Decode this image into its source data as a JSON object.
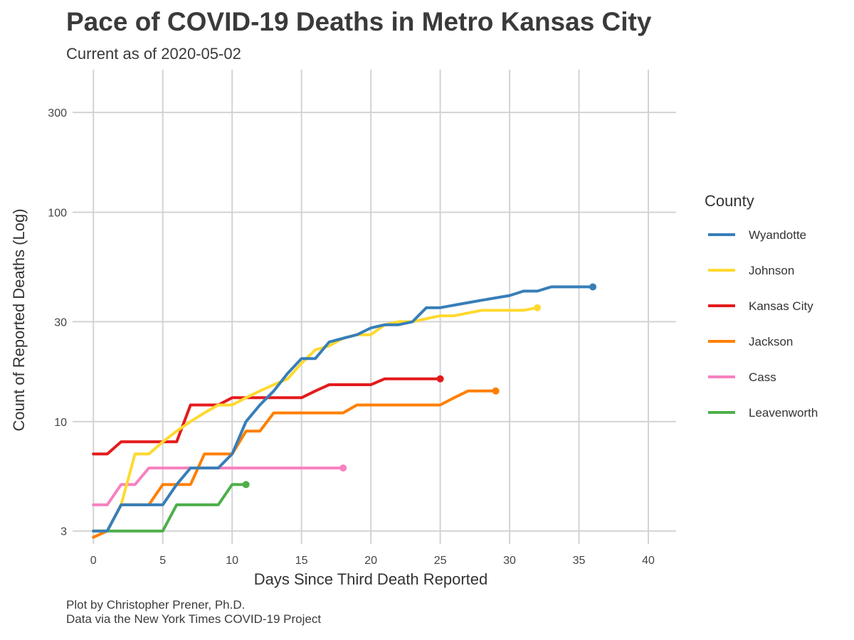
{
  "chart_data": {
    "type": "line",
    "title": "Pace of COVID-19 Deaths in Metro Kansas City",
    "subtitle": "Current as of 2020-05-02",
    "xlabel": "Days Since Third Death Reported",
    "ylabel": "Count of Reported Deaths (Log)",
    "xlim": [
      -1.5,
      42
    ],
    "ylim": [
      2.6,
      480
    ],
    "y_scale": "log",
    "x_ticks": [
      0,
      5,
      10,
      15,
      20,
      25,
      30,
      35,
      40
    ],
    "y_ticks": [
      3,
      10,
      30,
      100,
      300
    ],
    "grid": true,
    "legend": {
      "title": "County",
      "position": "right"
    },
    "caption": [
      "Plot by Christopher Prener, Ph.D.",
      "Data via the New York Times COVID-19 Project"
    ],
    "series": [
      {
        "name": "Wyandotte",
        "color": "#377EB8",
        "x": [
          0,
          1,
          2,
          3,
          4,
          5,
          6,
          7,
          8,
          9,
          10,
          11,
          12,
          13,
          14,
          15,
          16,
          17,
          18,
          19,
          20,
          21,
          22,
          23,
          24,
          25,
          26,
          27,
          28,
          29,
          30,
          31,
          32,
          33,
          34,
          35,
          36
        ],
        "y": [
          3,
          3,
          4,
          4,
          4,
          4,
          5,
          6,
          6,
          6,
          7,
          10,
          12,
          14,
          17,
          20,
          20,
          24,
          25,
          26,
          28,
          29,
          29,
          30,
          35,
          35,
          36,
          37,
          38,
          39,
          40,
          42,
          42,
          44,
          44,
          44,
          44
        ]
      },
      {
        "name": "Johnson",
        "color": "#FFD92F",
        "x": [
          0,
          1,
          2,
          3,
          4,
          5,
          6,
          7,
          8,
          9,
          10,
          11,
          12,
          13,
          14,
          15,
          16,
          17,
          18,
          19,
          20,
          21,
          22,
          23,
          24,
          25,
          26,
          27,
          28,
          29,
          30,
          31,
          32
        ],
        "y": [
          3,
          3,
          4,
          7,
          7,
          8,
          9,
          10,
          11,
          12,
          12,
          13,
          14,
          15,
          16,
          19,
          22,
          23,
          25,
          26,
          26,
          29,
          30,
          30,
          31,
          32,
          32,
          33,
          34,
          34,
          34,
          34,
          35
        ]
      },
      {
        "name": "Kansas City",
        "color": "#E41A1C",
        "x": [
          0,
          1,
          2,
          3,
          4,
          5,
          6,
          7,
          8,
          9,
          10,
          11,
          12,
          13,
          14,
          15,
          16,
          17,
          18,
          19,
          20,
          21,
          22,
          23,
          24,
          25
        ],
        "y": [
          7,
          7,
          8,
          8,
          8,
          8,
          8,
          12,
          12,
          12,
          13,
          13,
          13,
          13,
          13,
          13,
          14,
          15,
          15,
          15,
          15,
          16,
          16,
          16,
          16,
          16
        ]
      },
      {
        "name": "Jackson",
        "color": "#FF7F00",
        "x": [
          0,
          1,
          2,
          3,
          4,
          5,
          6,
          7,
          8,
          9,
          10,
          11,
          12,
          13,
          14,
          15,
          16,
          17,
          18,
          19,
          20,
          21,
          22,
          23,
          24,
          25,
          26,
          27,
          28,
          29
        ],
        "y": [
          2.8,
          3,
          4,
          4,
          4,
          5,
          5,
          5,
          7,
          7,
          7,
          9,
          9,
          11,
          11,
          11,
          11,
          11,
          11,
          12,
          12,
          12,
          12,
          12,
          12,
          12,
          13,
          14,
          14,
          14
        ]
      },
      {
        "name": "Cass",
        "color": "#F781BF",
        "x": [
          0,
          1,
          2,
          3,
          4,
          5,
          6,
          7,
          8,
          9,
          10,
          11,
          12,
          13,
          14,
          15,
          16,
          17,
          18
        ],
        "y": [
          4,
          4,
          5,
          5,
          6,
          6,
          6,
          6,
          6,
          6,
          6,
          6,
          6,
          6,
          6,
          6,
          6,
          6,
          6
        ]
      },
      {
        "name": "Leavenworth",
        "color": "#4DAF4A",
        "x": [
          0,
          1,
          2,
          3,
          4,
          5,
          6,
          7,
          8,
          9,
          10,
          11
        ],
        "y": [
          3,
          3,
          3,
          3,
          3,
          3,
          4,
          4,
          4,
          4,
          5,
          5
        ]
      }
    ]
  }
}
